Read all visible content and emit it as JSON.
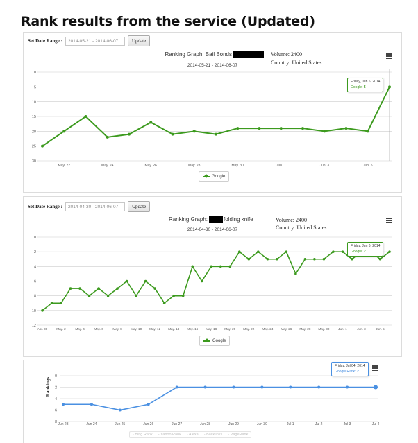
{
  "page_title": "Rank results from the service (Updated)",
  "panel1": {
    "date_label": "Set Date Range :",
    "date_value": "2014-05-21 - 2014-06-07",
    "update_label": "Update",
    "graph_title": "Ranking Graph: Bail Bonds",
    "date_subtitle": "2014-05-21 - 2014-06-07",
    "volume": "Volume: 2400",
    "country": "Country: United States",
    "legend": "Google",
    "tooltip_date": "Friday, Jun 6, 2014",
    "tooltip_series": "Google:",
    "tooltip_value": "5"
  },
  "panel2": {
    "date_label": "Set Date Range :",
    "date_value": "2014-04-30 - 2014-06-07",
    "update_label": "Update",
    "graph_title_prefix": "Ranking Graph:",
    "graph_title_suffix": "folding knife",
    "date_subtitle": "2014-04-30 - 2014-06-07",
    "volume": "Volume: 2400",
    "country": "Country: United States",
    "legend": "Google",
    "tooltip_date": "Friday, Jun 6, 2014",
    "tooltip_series": "Google:",
    "tooltip_value": "2"
  },
  "panel3": {
    "ylabel": "Rankings",
    "tooltip_date": "Friday, Jul 04, 2014",
    "tooltip_series": "Google Rank:",
    "tooltip_value": "2",
    "legend_items": [
      "Bing Rank",
      "Yahoo Rank",
      "Alexa",
      "Backlinks",
      "PageRank"
    ]
  },
  "colors": {
    "green": "#3c9a1e",
    "blue": "#4a90e2",
    "grid": "#cccccc"
  },
  "chart_data": [
    {
      "type": "line",
      "title": "Ranking Graph: Bail Bonds",
      "x": [
        "May 21",
        "May 22",
        "May 23",
        "May 24",
        "May 25",
        "May 26",
        "May 27",
        "May 28",
        "May 29",
        "May 30",
        "May 31",
        "Jun 1",
        "Jun 2",
        "Jun 3",
        "Jun 4",
        "Jun 5",
        "Jun 6"
      ],
      "x_tick_labels": [
        "May. 22",
        "May. 24",
        "May. 26",
        "May. 28",
        "May. 30",
        "Jun. 1",
        "Jun. 3",
        "Jun. 5"
      ],
      "y_tick_labels": [
        "0",
        "5",
        "10",
        "15",
        "20",
        "25",
        "30"
      ],
      "ylim": [
        30,
        0
      ],
      "grid": true,
      "series": [
        {
          "name": "Google",
          "values": [
            25,
            20,
            15,
            22,
            21,
            17,
            21,
            20,
            21,
            19,
            19,
            19,
            19,
            20,
            19,
            20,
            5
          ]
        }
      ]
    },
    {
      "type": "line",
      "title": "Ranking Graph: folding knife",
      "x": [
        "Apr 30",
        "May 1",
        "May 2",
        "May 3",
        "May 4",
        "May 5",
        "May 6",
        "May 7",
        "May 8",
        "May 9",
        "May 10",
        "May 11",
        "May 12",
        "May 13",
        "May 14",
        "May 15",
        "May 16",
        "May 17",
        "May 18",
        "May 19",
        "May 20",
        "May 21",
        "May 22",
        "May 23",
        "May 24",
        "May 25",
        "May 26",
        "May 27",
        "May 28",
        "May 29",
        "May 30",
        "May 31",
        "Jun 1",
        "Jun 2",
        "Jun 3",
        "Jun 4",
        "Jun 5",
        "Jun 6"
      ],
      "x_tick_labels": [
        "Apr. 30",
        "May. 2",
        "May. 4",
        "May. 6",
        "May. 8",
        "May. 10",
        "May. 12",
        "May. 14",
        "May. 16",
        "May. 18",
        "May. 20",
        "May. 22",
        "May. 24",
        "May. 26",
        "May. 28",
        "May. 30",
        "Jun. 1",
        "Jun. 3",
        "Jun. 5"
      ],
      "y_tick_labels": [
        "0",
        "2",
        "4",
        "6",
        "8",
        "10",
        "12"
      ],
      "ylim": [
        12,
        0
      ],
      "grid": true,
      "series": [
        {
          "name": "Google",
          "values": [
            10,
            9,
            9,
            7,
            7,
            8,
            7,
            8,
            7,
            6,
            8,
            6,
            7,
            9,
            8,
            8,
            4,
            6,
            4,
            4,
            4,
            2,
            3,
            2,
            3,
            3,
            2,
            5,
            3,
            3,
            3,
            2,
            2,
            3,
            2,
            2,
            3,
            2
          ]
        }
      ]
    },
    {
      "type": "line",
      "x": [
        "Jun 23",
        "Jun 24",
        "Jun 25",
        "Jun 26",
        "Jun 27",
        "Jun 28",
        "Jun 29",
        "Jun 30",
        "Jul 1",
        "Jul 2",
        "Jul 3",
        "Jul 4"
      ],
      "x_tick_labels": [
        "Jun 23",
        "Jun 24",
        "Jun 25",
        "Jun 26",
        "Jun 27",
        "Jun 28",
        "Jun 29",
        "Jun 30",
        "Jul 1",
        "Jul 2",
        "Jul 3",
        "Jul 4"
      ],
      "y_tick_labels": [
        "0",
        "2",
        "4",
        "6",
        "8"
      ],
      "ylabel": "Rankings",
      "ylim": [
        8,
        0
      ],
      "grid": true,
      "series": [
        {
          "name": "Google Rank",
          "values": [
            5,
            5,
            6,
            5,
            2,
            2,
            2,
            2,
            2,
            2,
            2,
            2
          ]
        }
      ]
    }
  ]
}
